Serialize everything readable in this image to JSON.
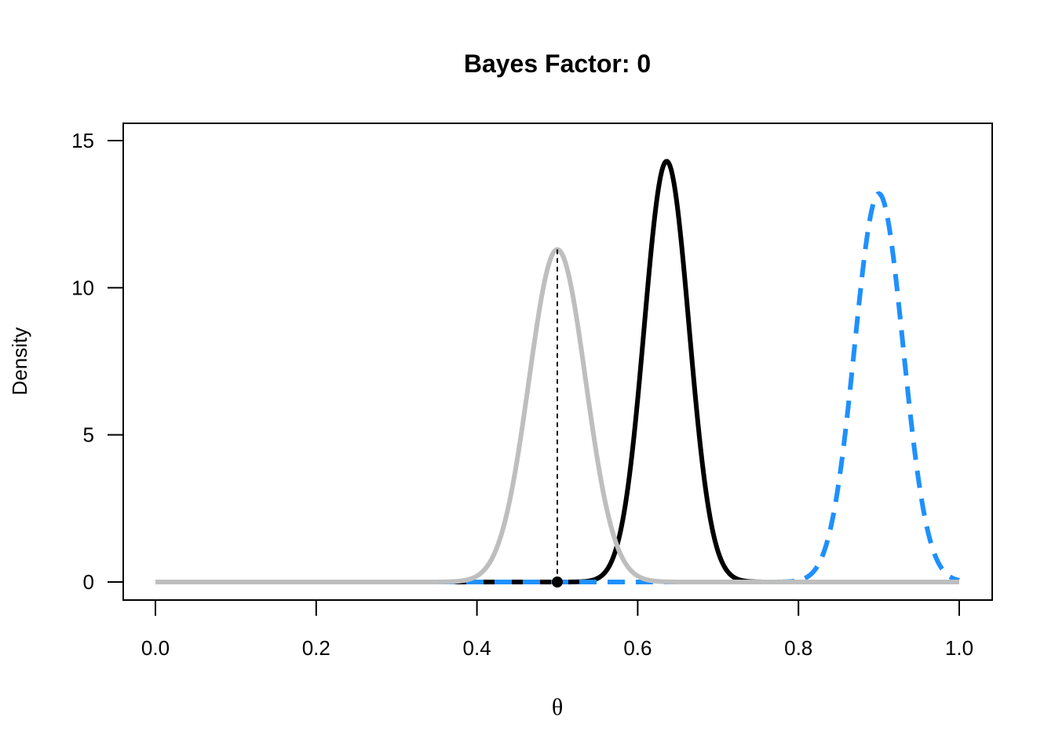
{
  "chart_data": {
    "type": "line",
    "title": "Bayes Factor: 0",
    "xlabel": "θ",
    "ylabel": "Density",
    "xlim": [
      0.0,
      1.0
    ],
    "ylim": [
      0,
      15
    ],
    "x_ticks": [
      "0.0",
      "0.2",
      "0.4",
      "0.6",
      "0.8",
      "1.0"
    ],
    "y_ticks": [
      "0",
      "5",
      "10",
      "15"
    ],
    "grid": false,
    "legend": "none",
    "series": [
      {
        "style": "solid",
        "color": "#000000",
        "curve": {
          "peak_x": 0.636,
          "peak_y": 14.3,
          "sd": 0.0279
        }
      },
      {
        "style": "dashed",
        "color": "#1E90FF",
        "curve": {
          "peak_x": 0.9,
          "peak_y": 13.2,
          "sd": 0.0302
        }
      },
      {
        "style": "solid",
        "color": "#BEBEBE",
        "curve": {
          "peak_x": 0.5,
          "peak_y": 11.3,
          "sd": 0.0353
        }
      }
    ],
    "reference": {
      "x": 0.5,
      "y_top": 11.3,
      "point_y": 0,
      "style": "dotted"
    }
  }
}
